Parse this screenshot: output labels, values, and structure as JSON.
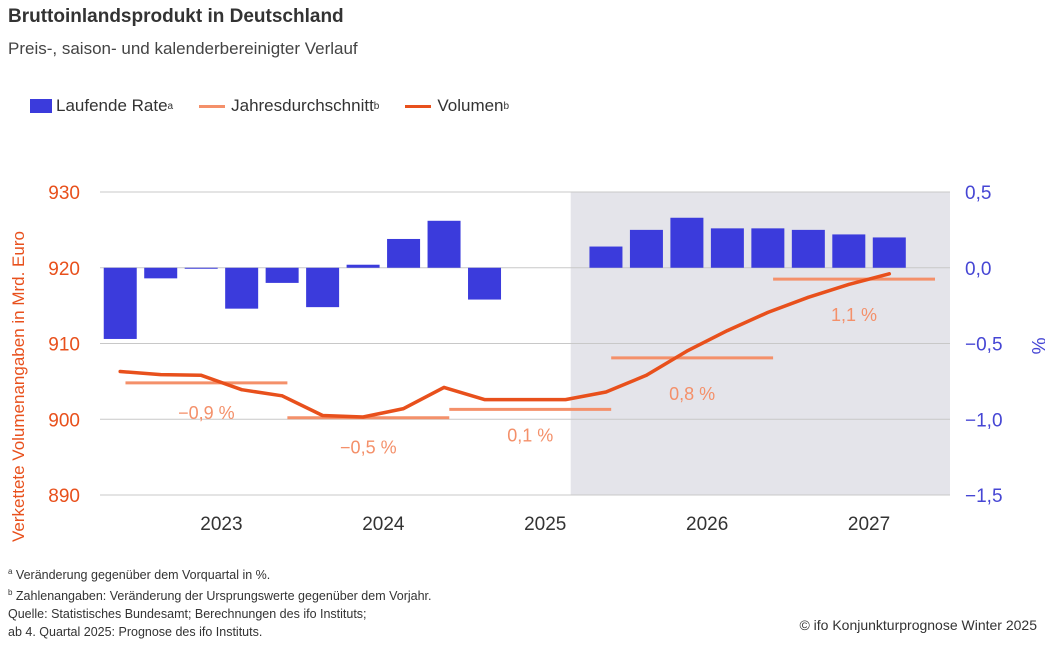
{
  "title": "Bruttoinlandsprodukt in Deutschland",
  "subtitle": "Preis-, saison- und kalenderbereinigter Verlauf",
  "legend": {
    "bar": {
      "label": "Laufende Rate",
      "sup": "a"
    },
    "avg": {
      "label": "Jahresdurchschnitt",
      "sup": "b"
    },
    "vol": {
      "label": "Volumen",
      "sup": "b"
    }
  },
  "colors": {
    "bar": "#3b3bdc",
    "volume": "#e8501c",
    "average": "#f4906a",
    "forecast_bg": "#e4e4ea",
    "grid": "#c8c8c8",
    "left_axis": "#e8501c",
    "right_axis": "#4646d4"
  },
  "chart_data": {
    "type": "bar+line",
    "left_axis": {
      "label": "Verkettete Volumenangaben in Mrd. Euro",
      "ylim": [
        890,
        930
      ],
      "ticks": [
        "930",
        "920",
        "910",
        "900",
        "890"
      ],
      "tick_values": [
        930,
        920,
        910,
        900,
        890
      ]
    },
    "right_axis": {
      "label": "%",
      "ylim": [
        -1.5,
        0.5
      ],
      "ticks": [
        "0,5",
        "0,0",
        "−0,5",
        "−1,0",
        "−1,5"
      ],
      "tick_values": [
        0.5,
        0.0,
        -0.5,
        -1.0,
        -1.5
      ]
    },
    "years": [
      "2023",
      "2024",
      "2025",
      "2026",
      "2027"
    ],
    "quarters": [
      "2022Q4",
      "2023Q1",
      "2023Q2",
      "2023Q3",
      "2023Q4",
      "2024Q1",
      "2024Q2",
      "2024Q3",
      "2024Q4",
      "2025Q1",
      "2025Q2",
      "2025Q3",
      "2025Q4",
      "2026Q1",
      "2026Q2",
      "2026Q3",
      "2026Q4",
      "2027Q1",
      "2027Q2",
      "2027Q3",
      "2027Q4"
    ],
    "forecast_start_quarter": "2025Q4",
    "series": [
      {
        "name": "Laufende Rate",
        "type": "bar",
        "axis": "right",
        "values": [
          -0.47,
          -0.07,
          0.0,
          -0.27,
          -0.1,
          -0.26,
          0.02,
          0.19,
          0.31,
          -0.21,
          null,
          null,
          0.14,
          0.25,
          0.33,
          0.26,
          0.26,
          0.25,
          0.22,
          0.2,
          null
        ]
      },
      {
        "name": "Volumen",
        "type": "line",
        "axis": "left",
        "values": [
          906.3,
          905.9,
          905.8,
          903.9,
          903.1,
          900.5,
          900.3,
          901.4,
          904.2,
          902.6,
          902.6,
          902.6,
          903.6,
          905.8,
          909.0,
          911.7,
          914.1,
          916.1,
          917.8,
          919.2,
          null
        ]
      }
    ],
    "annual_averages": [
      {
        "year": "2023",
        "value": 904.8,
        "label": "−0,9 %"
      },
      {
        "year": "2024",
        "value": 900.2,
        "label": "−0,5 %"
      },
      {
        "year": "2025",
        "value": 901.3,
        "label": "0,1 %"
      },
      {
        "year": "2026",
        "value": 908.1,
        "label": "0,8 %"
      },
      {
        "year": "2027",
        "value": 918.5,
        "label": "1,1 %"
      }
    ]
  },
  "footnotes": {
    "a": {
      "sup": "a",
      "text": " Veränderung gegenüber dem Vorquartal in %."
    },
    "b": {
      "sup": "b",
      "text": " Zahlenangaben: Veränderung der Ursprungswerte gegenüber dem Vorjahr."
    },
    "source": "Quelle: Statistisches Bundesamt; Berechnungen des ifo Instituts;",
    "forecast": "ab 4. Quartal 2025: Prognose des ifo Instituts."
  },
  "copyright": "© ifo Konjunkturprognose Winter 2025"
}
